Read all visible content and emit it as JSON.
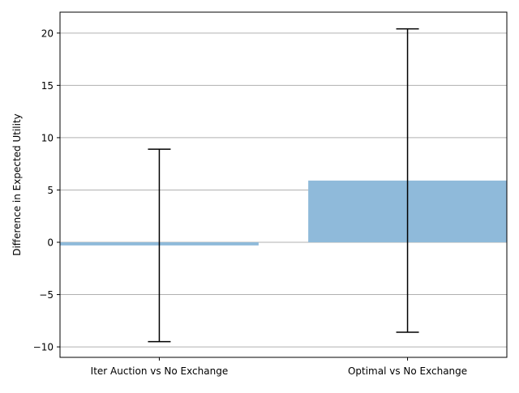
{
  "chart_data": {
    "type": "bar",
    "title": "",
    "xlabel": "",
    "ylabel": "Difference in Expected Utility",
    "categories": [
      "Iter Auction vs No Exchange",
      "Optimal vs No Exchange"
    ],
    "values": [
      -0.3,
      5.9
    ],
    "error_low": [
      -9.5,
      -8.6
    ],
    "error_high": [
      8.9,
      20.4
    ],
    "ylim": [
      -11,
      22
    ],
    "yticks": [
      -10,
      -5,
      0,
      5,
      10,
      15,
      20
    ],
    "ytick_labels": [
      "−10",
      "−5",
      "0",
      "5",
      "10",
      "15",
      "20"
    ],
    "grid": "y",
    "bar_color": "#8fbada",
    "errorbar_color": "#000000",
    "legend": "none"
  }
}
